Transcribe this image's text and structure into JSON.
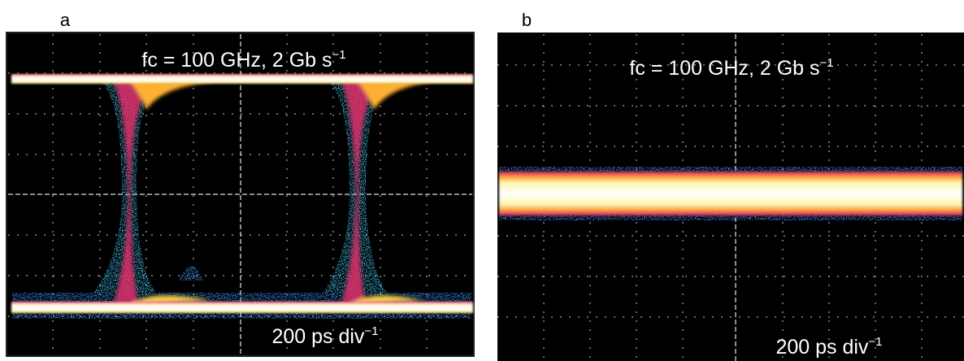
{
  "panels": [
    {
      "label": "a",
      "top_text": {
        "main": "fc = 100 GHz, 2 Gb s",
        "sup": "−1"
      },
      "bottom_text": {
        "main": "200 ps div",
        "sup": "−1"
      }
    },
    {
      "label": "b",
      "top_text": {
        "main": "fc = 100 GHz, 2 Gb s",
        "sup": "−1"
      },
      "bottom_text": {
        "main": "200 ps div",
        "sup": "−1"
      }
    }
  ]
}
